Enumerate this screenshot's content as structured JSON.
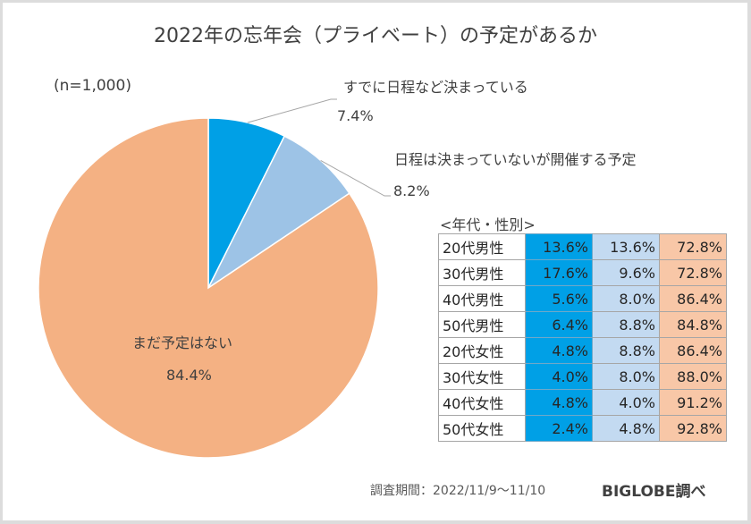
{
  "chart_data": {
    "type": "pie",
    "title": "2022年の忘年会（プライベート）の予定があるか",
    "sample_note": "(n=1,000)",
    "slices": [
      {
        "label": "すでに日程など決まっている",
        "value": 7.4,
        "display": "7.4%",
        "color": "#00a0e6"
      },
      {
        "label": "日程は決まっていないが開催する予定",
        "value": 8.2,
        "display": "8.2%",
        "color": "#9dc3e6"
      },
      {
        "label": "まだ予定はない",
        "value": 84.4,
        "display": "84.4%",
        "color": "#f4b183"
      }
    ],
    "start_angle": "12 o'clock",
    "direction": "clockwise",
    "breakdown_table": {
      "title": "<年代・性別>",
      "column_colors": [
        "#00a0e6",
        "#c3daf1",
        "#f8c7a7"
      ],
      "rows": [
        {
          "label": "20代男性",
          "values": [
            "13.6%",
            "13.6%",
            "72.8%"
          ]
        },
        {
          "label": "30代男性",
          "values": [
            "17.6%",
            "9.6%",
            "72.8%"
          ]
        },
        {
          "label": "40代男性",
          "values": [
            "5.6%",
            "8.0%",
            "86.4%"
          ]
        },
        {
          "label": "50代男性",
          "values": [
            "6.4%",
            "8.8%",
            "84.8%"
          ]
        },
        {
          "label": "20代女性",
          "values": [
            "4.8%",
            "8.8%",
            "86.4%"
          ]
        },
        {
          "label": "30代女性",
          "values": [
            "4.0%",
            "8.0%",
            "88.0%"
          ]
        },
        {
          "label": "40代女性",
          "values": [
            "4.8%",
            "4.0%",
            "91.2%"
          ]
        },
        {
          "label": "50代女性",
          "values": [
            "2.4%",
            "4.8%",
            "92.8%"
          ]
        }
      ]
    }
  },
  "footer": {
    "survey_period": "調査期間：2022/11/9～11/10",
    "source": "BIGLOBE調べ"
  }
}
